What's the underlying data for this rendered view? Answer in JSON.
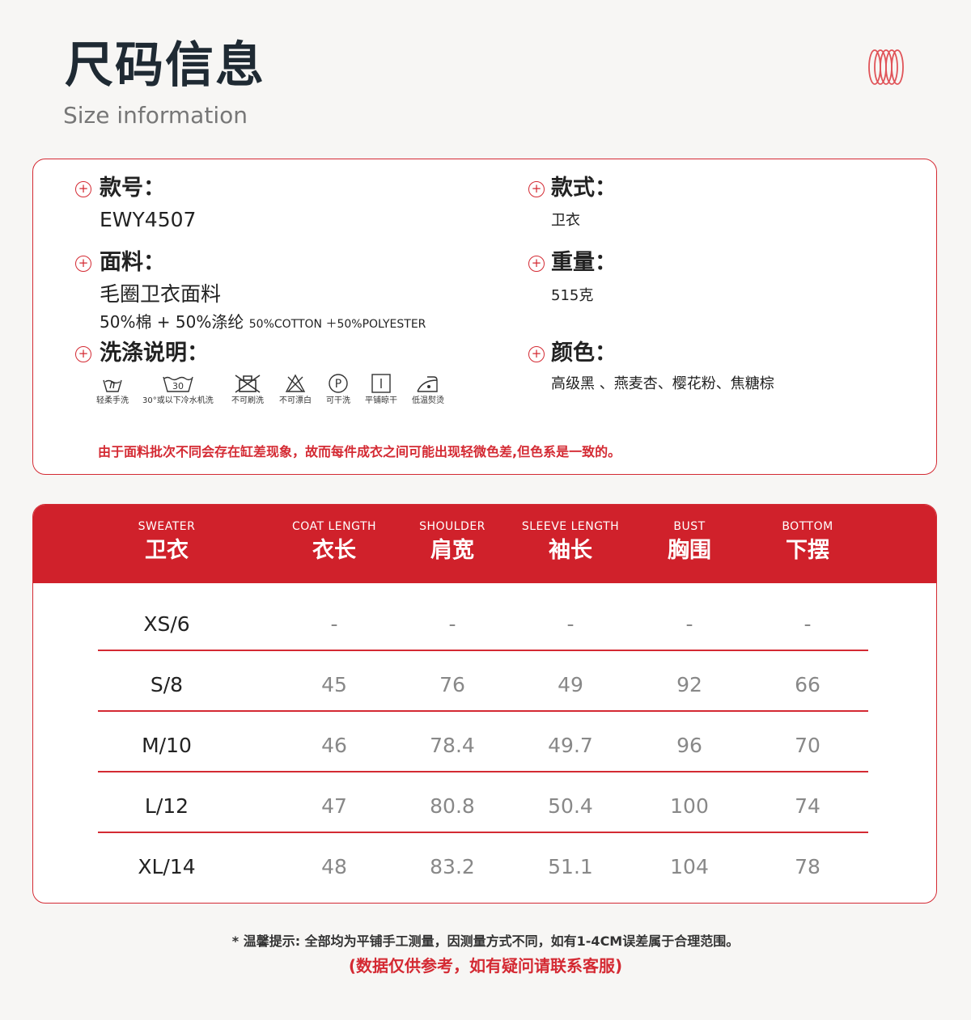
{
  "header": {
    "title": "尺码信息",
    "subtitle": "Size information"
  },
  "info": {
    "style_no": {
      "label": "款号：",
      "value": "EWY4507"
    },
    "style": {
      "label": "款式：",
      "value": "卫衣"
    },
    "fabric": {
      "label": "面料：",
      "value": "毛圈卫衣面料",
      "composition": "50%棉 + 50%涤纶",
      "composition_en": "50%COTTON ＋50%POLYESTER"
    },
    "weight": {
      "label": "重量：",
      "value": "515克"
    },
    "care": {
      "label": "洗涤说明：",
      "items": [
        {
          "icon": "hand-wash-icon",
          "label": "轻柔手洗"
        },
        {
          "icon": "machine-wash-30-icon",
          "label": "30°或以下冷水机洗",
          "temp": "30"
        },
        {
          "icon": "no-brush-icon",
          "label": "不可刷洗"
        },
        {
          "icon": "no-bleach-icon",
          "label": "不可漂白"
        },
        {
          "icon": "dry-clean-icon",
          "label": "可干洗",
          "letter": "P"
        },
        {
          "icon": "flat-dry-icon",
          "label": "平铺晾干"
        },
        {
          "icon": "iron-low-icon",
          "label": "低温熨烫"
        }
      ]
    },
    "color": {
      "label": "颜色：",
      "value": "高级黑 、燕麦杏、樱花粉、焦糖棕"
    },
    "note": "由于面料批次不同会存在缸差现象，故而每件成衣之间可能出现轻微色差,但色系是一致的。"
  },
  "table": {
    "headers": [
      {
        "en": "SWEATER",
        "zh": "卫衣"
      },
      {
        "en": "COAT LENGTH",
        "zh": "衣长"
      },
      {
        "en": "SHOULDER",
        "zh": "肩宽"
      },
      {
        "en": "SLEEVE LENGTH",
        "zh": "袖长"
      },
      {
        "en": "BUST",
        "zh": "胸围"
      },
      {
        "en": "BOTTOM",
        "zh": "下摆"
      }
    ],
    "rows": [
      [
        "XS/6",
        "-",
        "-",
        "-",
        "-",
        "-"
      ],
      [
        "S/8",
        "45",
        "76",
        "49",
        "92",
        "66"
      ],
      [
        "M/10",
        "46",
        "78.4",
        "49.7",
        "96",
        "70"
      ],
      [
        "L/12",
        "47",
        "80.8",
        "50.4",
        "100",
        "74"
      ],
      [
        "XL/14",
        "48",
        "83.2",
        "51.1",
        "104",
        "78"
      ]
    ]
  },
  "footer": {
    "tip": "* 温馨提示: 全部均为平铺手工测量，因测量方式不同，如有1-4CM误差属于合理范围。",
    "tip2": "(数据仅供参考，如有疑问请联系客服)"
  },
  "colors": {
    "accent": "#d0212b",
    "background": "#f7f6f4"
  }
}
